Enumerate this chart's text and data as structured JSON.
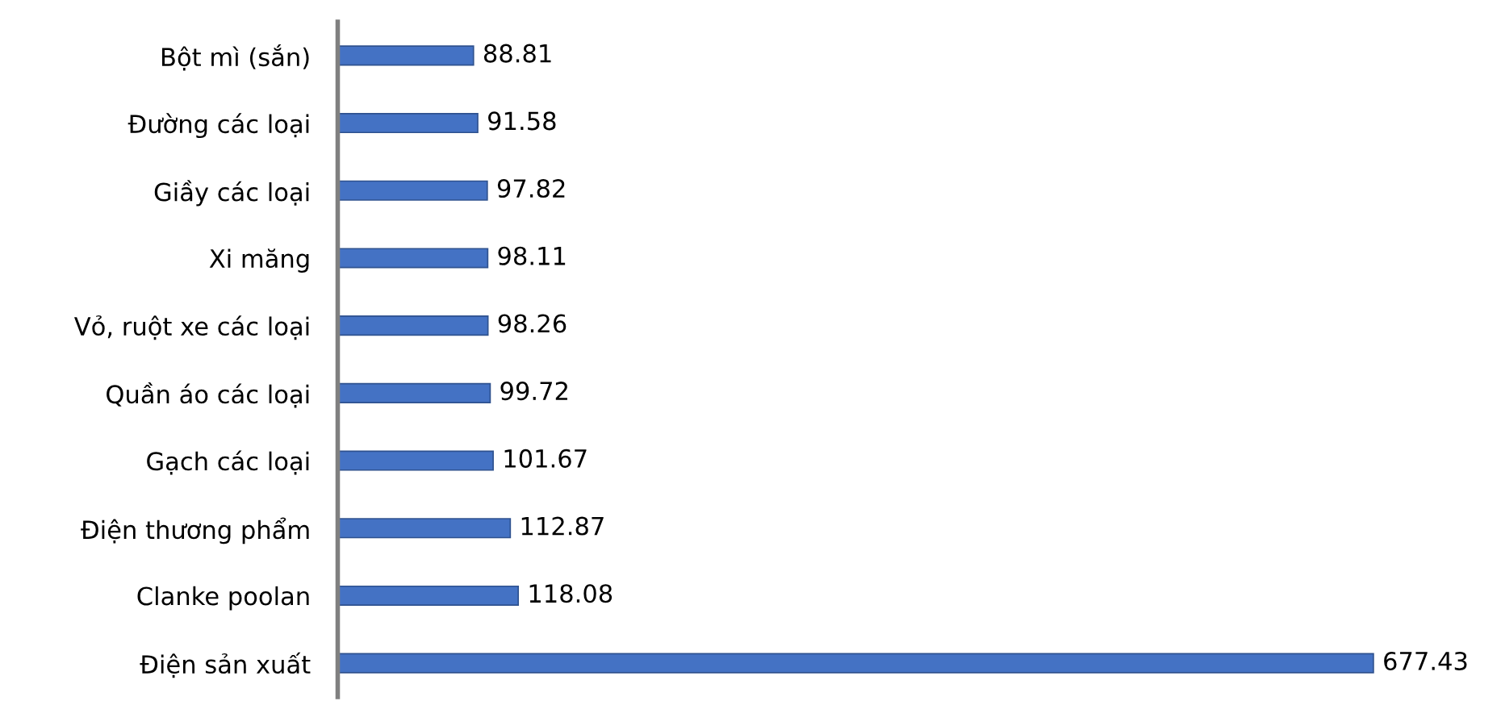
{
  "chart_data": {
    "type": "bar",
    "orientation": "horizontal",
    "categories": [
      "Bột mì (sắn)",
      "Đường các loại",
      "Giầy các loại",
      "Xi măng",
      "Vỏ, ruột xe các loại",
      "Quần áo các loại",
      "Gạch các loại",
      "Điện thương phẩm",
      "Clanke poolan",
      "Điện sản xuất"
    ],
    "values": [
      88.81,
      91.58,
      97.82,
      98.11,
      98.26,
      99.72,
      101.67,
      112.87,
      118.08,
      677.43
    ],
    "color": "#4472c4",
    "data_labels": true,
    "grid": false,
    "legend": false
  }
}
